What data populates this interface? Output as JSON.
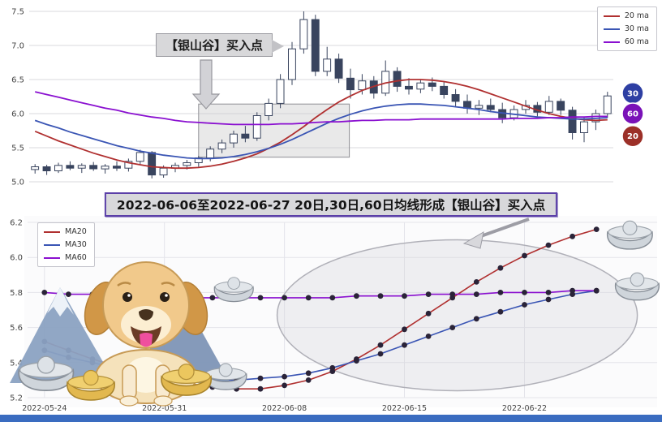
{
  "banner": {
    "text": "2022-06-06至2022-06-27 20日,30日,60日均线形成【银山谷】买入点"
  },
  "colors": {
    "ma20": "#b03030",
    "ma30": "#3a55b4",
    "ma60": "#8a10d0",
    "candle_up": "#ffffff",
    "candle_down": "#39445e",
    "candle_stroke": "#39445e",
    "grid": "#d9d9de",
    "marker": "#2a2338",
    "banner_border": "#5b3fa8",
    "bottom_bar": "#3a6cc0",
    "badge_30": "#2e3fa3",
    "badge_60": "#7a12b8",
    "badge_20": "#9c3028"
  },
  "badges": [
    {
      "label": "30",
      "color": "#2e3fa3",
      "value": 6.3
    },
    {
      "label": "60",
      "color": "#7a12b8",
      "value": 6.0
    },
    {
      "label": "20",
      "color": "#9c3028",
      "value": 5.67
    }
  ],
  "decorations": {
    "mascot": "golden-retriever-dog",
    "mountains": "snow-mountain-icon",
    "ingot": "silver-ingot-icon",
    "pointer": "gray-arrow-icon"
  },
  "chart_data": [
    {
      "type": "candlestick",
      "title": "",
      "ylim": [
        5.0,
        7.5
      ],
      "yticks": [
        5.0,
        5.5,
        6.0,
        6.5,
        7.0,
        7.5
      ],
      "legend": [
        {
          "label": "20 ma",
          "color": "#b03030"
        },
        {
          "label": "30 ma",
          "color": "#3a55b4"
        },
        {
          "label": "60 ma",
          "color": "#8a10d0"
        }
      ],
      "annotation": {
        "label": "【银山谷】买入点"
      },
      "highlight_box": {
        "x0": 14.5,
        "x1": 27.4,
        "y0": 5.36,
        "y1": 6.14
      },
      "candles": [
        [
          5.18,
          5.26,
          5.12,
          5.22
        ],
        [
          5.22,
          5.25,
          5.1,
          5.16
        ],
        [
          5.16,
          5.28,
          5.13,
          5.24
        ],
        [
          5.24,
          5.3,
          5.17,
          5.2
        ],
        [
          5.2,
          5.27,
          5.13,
          5.24
        ],
        [
          5.24,
          5.29,
          5.16,
          5.19
        ],
        [
          5.19,
          5.26,
          5.12,
          5.23
        ],
        [
          5.23,
          5.3,
          5.16,
          5.2
        ],
        [
          5.2,
          5.34,
          5.15,
          5.3
        ],
        [
          5.3,
          5.47,
          5.26,
          5.43
        ],
        [
          5.43,
          5.45,
          5.05,
          5.1
        ],
        [
          5.1,
          5.24,
          5.06,
          5.2
        ],
        [
          5.2,
          5.28,
          5.14,
          5.24
        ],
        [
          5.24,
          5.32,
          5.18,
          5.28
        ],
        [
          5.28,
          5.38,
          5.22,
          5.35
        ],
        [
          5.35,
          5.52,
          5.3,
          5.48
        ],
        [
          5.48,
          5.62,
          5.42,
          5.57
        ],
        [
          5.57,
          5.75,
          5.5,
          5.7
        ],
        [
          5.7,
          5.82,
          5.58,
          5.64
        ],
        [
          5.64,
          6.02,
          5.6,
          5.97
        ],
        [
          5.97,
          6.22,
          5.9,
          6.15
        ],
        [
          6.15,
          6.58,
          6.08,
          6.5
        ],
        [
          6.5,
          7.05,
          6.42,
          6.95
        ],
        [
          6.95,
          7.5,
          6.88,
          7.38
        ],
        [
          7.38,
          7.45,
          6.55,
          6.62
        ],
        [
          6.62,
          6.98,
          6.55,
          6.8
        ],
        [
          6.8,
          6.88,
          6.45,
          6.52
        ],
        [
          6.52,
          6.66,
          6.22,
          6.35
        ],
        [
          6.35,
          6.58,
          6.28,
          6.48
        ],
        [
          6.48,
          6.55,
          6.22,
          6.3
        ],
        [
          6.3,
          6.78,
          6.26,
          6.62
        ],
        [
          6.62,
          6.68,
          6.32,
          6.4
        ],
        [
          6.4,
          6.52,
          6.28,
          6.36
        ],
        [
          6.36,
          6.5,
          6.3,
          6.45
        ],
        [
          6.45,
          6.53,
          6.33,
          6.4
        ],
        [
          6.4,
          6.47,
          6.22,
          6.28
        ],
        [
          6.28,
          6.36,
          6.1,
          6.18
        ],
        [
          6.18,
          6.28,
          6.0,
          6.08
        ],
        [
          6.08,
          6.2,
          5.98,
          6.12
        ],
        [
          6.12,
          6.22,
          6.02,
          6.06
        ],
        [
          6.06,
          6.16,
          5.86,
          5.94
        ],
        [
          5.94,
          6.12,
          5.9,
          6.06
        ],
        [
          6.06,
          6.2,
          6.0,
          6.12
        ],
        [
          6.12,
          6.17,
          5.96,
          6.02
        ],
        [
          6.02,
          6.26,
          5.98,
          6.18
        ],
        [
          6.18,
          6.22,
          5.98,
          6.05
        ],
        [
          6.05,
          6.1,
          5.62,
          5.72
        ],
        [
          5.72,
          5.95,
          5.58,
          5.88
        ],
        [
          5.88,
          6.06,
          5.76,
          6.0
        ],
        [
          6.0,
          6.32,
          5.94,
          6.26
        ]
      ],
      "series": [
        {
          "name": "ma20",
          "color": "#b03030",
          "values": [
            5.74,
            5.67,
            5.6,
            5.54,
            5.48,
            5.42,
            5.37,
            5.32,
            5.28,
            5.25,
            5.22,
            5.21,
            5.2,
            5.2,
            5.21,
            5.23,
            5.26,
            5.3,
            5.35,
            5.41,
            5.49,
            5.58,
            5.69,
            5.81,
            5.94,
            6.06,
            6.17,
            6.26,
            6.34,
            6.4,
            6.45,
            6.48,
            6.5,
            6.5,
            6.49,
            6.47,
            6.44,
            6.4,
            6.35,
            6.29,
            6.23,
            6.17,
            6.11,
            6.05,
            6.0,
            5.96,
            5.93,
            5.91,
            5.9,
            5.91
          ]
        },
        {
          "name": "ma30",
          "color": "#3a55b4",
          "values": [
            5.9,
            5.84,
            5.79,
            5.73,
            5.68,
            5.63,
            5.58,
            5.53,
            5.49,
            5.45,
            5.42,
            5.39,
            5.37,
            5.35,
            5.34,
            5.34,
            5.35,
            5.37,
            5.4,
            5.44,
            5.49,
            5.55,
            5.62,
            5.7,
            5.78,
            5.86,
            5.93,
            5.99,
            6.04,
            6.08,
            6.11,
            6.13,
            6.14,
            6.14,
            6.13,
            6.12,
            6.1,
            6.08,
            6.06,
            6.03,
            6.01,
            5.99,
            5.97,
            5.95,
            5.94,
            5.93,
            5.92,
            5.92,
            5.93,
            5.94
          ]
        },
        {
          "name": "ma60",
          "color": "#8a10d0",
          "values": [
            6.32,
            6.28,
            6.24,
            6.2,
            6.16,
            6.12,
            6.08,
            6.05,
            6.01,
            5.98,
            5.95,
            5.93,
            5.9,
            5.88,
            5.87,
            5.86,
            5.85,
            5.84,
            5.84,
            5.84,
            5.84,
            5.85,
            5.85,
            5.86,
            5.87,
            5.88,
            5.88,
            5.89,
            5.9,
            5.9,
            5.91,
            5.91,
            5.91,
            5.92,
            5.92,
            5.92,
            5.92,
            5.92,
            5.92,
            5.92,
            5.92,
            5.93,
            5.93,
            5.93,
            5.94,
            5.94,
            5.95,
            5.95,
            5.96,
            5.96
          ]
        }
      ]
    },
    {
      "type": "line",
      "ylim": [
        5.2,
        6.2
      ],
      "yticks": [
        5.2,
        5.4,
        5.6,
        5.8,
        6.0,
        6.2
      ],
      "x_dates": [
        "2022-05-24",
        "2022-05-25",
        "2022-05-26",
        "2022-05-27",
        "2022-05-30",
        "2022-05-31",
        "2022-06-01",
        "2022-06-02",
        "2022-06-06",
        "2022-06-07",
        "2022-06-08",
        "2022-06-09",
        "2022-06-10",
        "2022-06-13",
        "2022-06-14",
        "2022-06-15",
        "2022-06-16",
        "2022-06-17",
        "2022-06-20",
        "2022-06-21",
        "2022-06-22",
        "2022-06-23",
        "2022-06-24",
        "2022-06-27"
      ],
      "xticks": [
        {
          "index": 0,
          "label": "2022-05-24"
        },
        {
          "index": 5,
          "label": "2022-05-31"
        },
        {
          "index": 10,
          "label": "2022-06-08"
        },
        {
          "index": 15,
          "label": "2022-06-15"
        },
        {
          "index": 20,
          "label": "2022-06-22"
        }
      ],
      "legend": [
        {
          "label": "MA20",
          "color": "#b03030"
        },
        {
          "label": "MA30",
          "color": "#3a55b4"
        },
        {
          "label": "MA60",
          "color": "#8a10d0"
        }
      ],
      "series": [
        {
          "name": "MA20",
          "color": "#b03030",
          "values": [
            5.52,
            5.47,
            5.42,
            5.38,
            5.34,
            5.31,
            5.28,
            5.26,
            5.25,
            5.25,
            5.27,
            5.3,
            5.35,
            5.42,
            5.5,
            5.59,
            5.68,
            5.77,
            5.86,
            5.94,
            6.01,
            6.07,
            6.12,
            6.16
          ]
        },
        {
          "name": "MA30",
          "color": "#3a55b4",
          "values": [
            5.47,
            5.43,
            5.4,
            5.37,
            5.34,
            5.32,
            5.31,
            5.3,
            5.3,
            5.31,
            5.32,
            5.34,
            5.37,
            5.41,
            5.45,
            5.5,
            5.55,
            5.6,
            5.65,
            5.69,
            5.73,
            5.76,
            5.79,
            5.81
          ]
        },
        {
          "name": "MA60",
          "color": "#8a10d0",
          "values": [
            5.8,
            5.79,
            5.79,
            5.78,
            5.78,
            5.78,
            5.77,
            5.77,
            5.77,
            5.77,
            5.77,
            5.77,
            5.77,
            5.78,
            5.78,
            5.78,
            5.79,
            5.79,
            5.79,
            5.8,
            5.8,
            5.8,
            5.81,
            5.81
          ]
        }
      ]
    }
  ]
}
